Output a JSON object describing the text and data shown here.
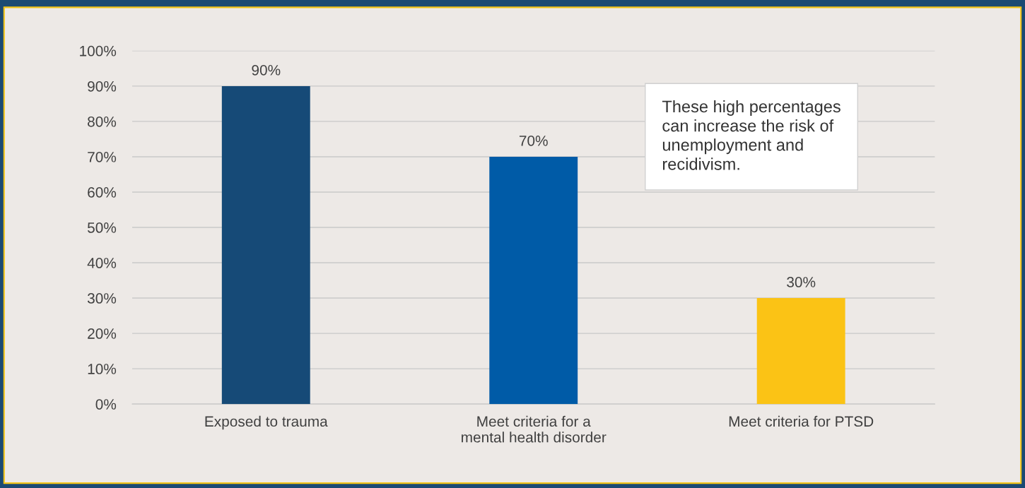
{
  "chart_data": {
    "type": "bar",
    "categories": [
      "Exposed to trauma",
      "Meet criteria for a\nmental health disorder",
      "Meet criteria for PTSD"
    ],
    "values": [
      90,
      70,
      30
    ],
    "colors": [
      "#164a77",
      "#005ba7",
      "#fbc315"
    ],
    "value_labels": [
      "90%",
      "70%",
      "30%"
    ],
    "ylim": [
      0,
      100
    ],
    "yticks": [
      {
        "value": 0,
        "label": "0%"
      },
      {
        "value": 10,
        "label": "10%"
      },
      {
        "value": 20,
        "label": "20%"
      },
      {
        "value": 30,
        "label": "30%"
      },
      {
        "value": 40,
        "label": "40%"
      },
      {
        "value": 50,
        "label": "50%"
      },
      {
        "value": 60,
        "label": "60%"
      },
      {
        "value": 70,
        "label": "70%"
      },
      {
        "value": 80,
        "label": "80%"
      },
      {
        "value": 90,
        "label": "90%"
      },
      {
        "value": 100,
        "label": "100%"
      }
    ],
    "grid": "y",
    "annotations": [
      "These high percentages\ncan increase the risk of\nunemployment and\nrecidivism."
    ]
  }
}
